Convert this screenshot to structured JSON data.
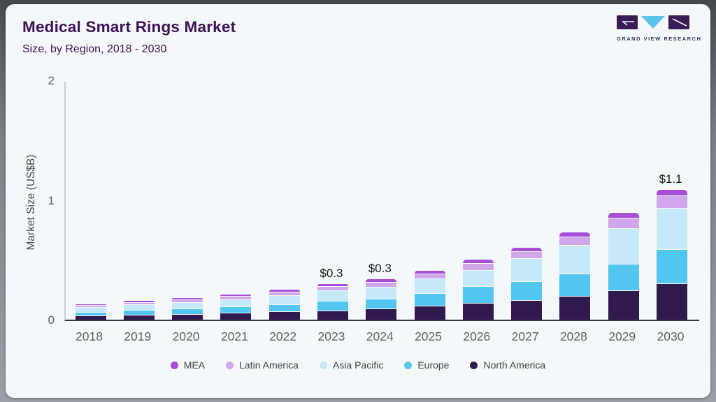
{
  "header": {
    "title": "Medical Smart Rings Market",
    "subtitle": "Size, by Region, 2018 - 2030"
  },
  "logo": {
    "name": "grand-view-research-logo",
    "text": "GRAND VIEW RESEARCH",
    "brand_purple": "#3a1c54",
    "brand_blue": "#5bc4ea"
  },
  "chart_data": {
    "type": "bar",
    "stacked": true,
    "title": "Medical Smart Rings Market Size, by Region, 2018 - 2030",
    "ylabel": "Market Size (US$B)",
    "ylim": [
      0,
      2
    ],
    "yticks": [
      0,
      1,
      2
    ],
    "grid": "off",
    "legend_position": "bottom",
    "categories": [
      "2018",
      "2019",
      "2020",
      "2021",
      "2022",
      "2023",
      "2024",
      "2025",
      "2026",
      "2027",
      "2028",
      "2029",
      "2030"
    ],
    "stack_order": "bottom-to-top",
    "series": [
      {
        "name": "North America",
        "color": "#2f1a4e",
        "values": [
          0.035,
          0.042,
          0.049,
          0.057,
          0.067,
          0.078,
          0.095,
          0.115,
          0.138,
          0.165,
          0.199,
          0.242,
          0.303
        ]
      },
      {
        "name": "Europe",
        "color": "#53c6f0",
        "values": [
          0.032,
          0.038,
          0.044,
          0.051,
          0.06,
          0.077,
          0.08,
          0.106,
          0.14,
          0.155,
          0.188,
          0.227,
          0.287
        ]
      },
      {
        "name": "Asia Pacific",
        "color": "#c6e9f9",
        "values": [
          0.04,
          0.047,
          0.055,
          0.064,
          0.076,
          0.091,
          0.1,
          0.122,
          0.137,
          0.193,
          0.235,
          0.295,
          0.345
        ]
      },
      {
        "name": "Latin America",
        "color": "#d0a7ea",
        "values": [
          0.016,
          0.019,
          0.022,
          0.026,
          0.031,
          0.032,
          0.042,
          0.044,
          0.057,
          0.058,
          0.074,
          0.088,
          0.105
        ]
      },
      {
        "name": "MEA",
        "color": "#a44fd4",
        "values": [
          0.007,
          0.009,
          0.01,
          0.012,
          0.014,
          0.022,
          0.023,
          0.024,
          0.028,
          0.03,
          0.034,
          0.042,
          0.044
        ]
      }
    ],
    "totals": [
      0.13,
      0.155,
      0.18,
      0.21,
      0.25,
      0.3,
      0.34,
      0.41,
      0.5,
      0.6,
      0.73,
      0.89,
      1.08
    ],
    "bar_labels": [
      {
        "category": "2023",
        "text": "$0.3"
      },
      {
        "category": "2024",
        "text": "$0.3"
      },
      {
        "category": "2030",
        "text": "$1.1"
      }
    ],
    "legend_order": [
      "MEA",
      "Latin America",
      "Asia Pacific",
      "Europe",
      "North America"
    ]
  }
}
